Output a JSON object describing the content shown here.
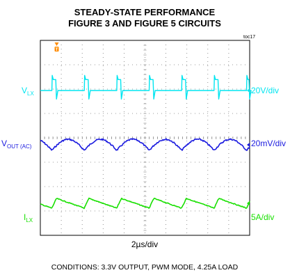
{
  "chart_data": {
    "type": "line",
    "title": "STEADY-STATE PERFORMANCE",
    "subtitle": "FIGURE 3 AND FIGURE 5 CIRCUITS",
    "figure_tag": "toc17",
    "time_scale": "2µs/div",
    "caption": "CONDITIONS: 3.3V OUTPUT, PWM MODE, 4.25A LOAD",
    "grid": true,
    "divisions": {
      "x": 10,
      "y": 8
    },
    "switching_period_div": 1.55,
    "trigger_marker": {
      "label": "T",
      "x_div": 0.25
    },
    "channels": [
      {
        "name": "V",
        "name_sub": "LX",
        "scale": "20V/div",
        "color": "#00e5f0",
        "waveform": "pulse",
        "pulse_width_div": 0.22,
        "high_level_div": 0.45,
        "low_level_div": -0.35
      },
      {
        "name": "V",
        "name_sub": "OUT (AC)",
        "scale": "20mV/div",
        "color": "#1a1adf",
        "waveform": "ripple",
        "ripple_pp_div": 0.45
      },
      {
        "name": "I",
        "name_sub": "LX",
        "scale": "5A/div",
        "color": "#18e000",
        "waveform": "sawtooth",
        "ripple_pp_div": 0.4
      }
    ],
    "xlim": [
      0,
      10
    ],
    "ylim": [
      -4,
      4
    ]
  }
}
